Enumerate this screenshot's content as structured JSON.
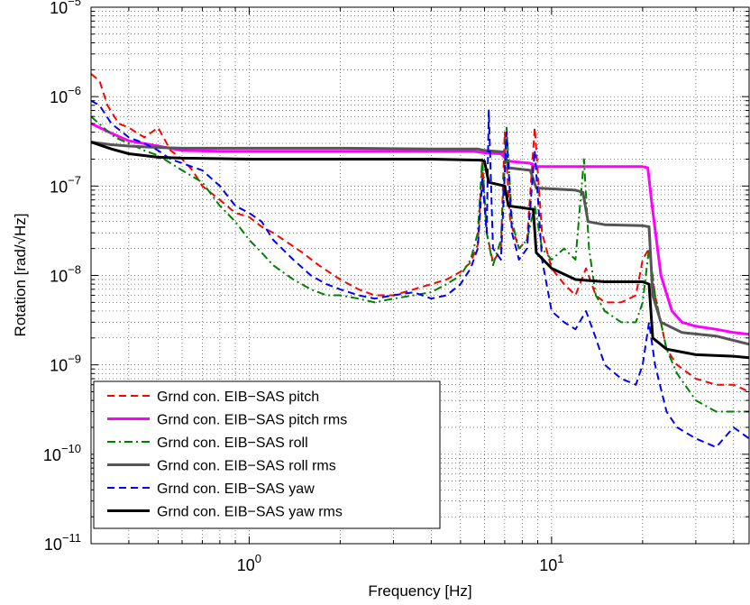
{
  "chart_data": {
    "type": "line",
    "xlabel": "Frequency [Hz]",
    "ylabel": "Rotation [rad/√Hz]",
    "xscale": "log",
    "yscale": "log",
    "xlim": [
      0.3,
      45
    ],
    "ylim": [
      1e-11,
      1e-05
    ],
    "grid": true,
    "legend_position": "bottom-left",
    "x_ticks": [
      {
        "value": 1,
        "base": "10",
        "exp": "0"
      },
      {
        "value": 10,
        "base": "10",
        "exp": "1"
      }
    ],
    "y_ticks": [
      {
        "value": 1e-11,
        "base": "10",
        "exp": "−11"
      },
      {
        "value": 1e-10,
        "base": "10",
        "exp": "−10"
      },
      {
        "value": 1e-09,
        "base": "10",
        "exp": "−9"
      },
      {
        "value": 1e-08,
        "base": "10",
        "exp": "−8"
      },
      {
        "value": 1e-07,
        "base": "10",
        "exp": "−7"
      },
      {
        "value": 1e-06,
        "base": "10",
        "exp": "−6"
      },
      {
        "value": 1e-05,
        "base": "10",
        "exp": "−5"
      }
    ],
    "series": [
      {
        "name": "Grnd con. EIB−SAS pitch",
        "color": "#ff0000",
        "style": "dashed",
        "width": 2,
        "points": [
          [
            0.3,
            1.8e-06
          ],
          [
            0.32,
            1.5e-06
          ],
          [
            0.34,
            8e-07
          ],
          [
            0.37,
            5e-07
          ],
          [
            0.4,
            4.5e-07
          ],
          [
            0.45,
            3.5e-07
          ],
          [
            0.5,
            4.5e-07
          ],
          [
            0.55,
            2.5e-07
          ],
          [
            0.6,
            2e-07
          ],
          [
            0.65,
            1.5e-07
          ],
          [
            0.7,
            1e-07
          ],
          [
            0.8,
            7e-08
          ],
          [
            0.9,
            5e-08
          ],
          [
            1.0,
            4.5e-08
          ],
          [
            1.1,
            3.5e-08
          ],
          [
            1.2,
            3e-08
          ],
          [
            1.3,
            2.5e-08
          ],
          [
            1.5,
            1.8e-08
          ],
          [
            1.7,
            1.3e-08
          ],
          [
            2.0,
            9e-09
          ],
          [
            2.3,
            7e-09
          ],
          [
            2.6,
            6e-09
          ],
          [
            3.0,
            6e-09
          ],
          [
            3.5,
            7e-09
          ],
          [
            4.0,
            8e-09
          ],
          [
            4.5,
            9e-09
          ],
          [
            5.0,
            1.1e-08
          ],
          [
            5.4,
            1.4e-08
          ],
          [
            5.7,
            2.2e-08
          ],
          [
            5.9,
            1.8e-07
          ],
          [
            6.1,
            3e-08
          ],
          [
            6.4,
            1.4e-08
          ],
          [
            6.8,
            2e-08
          ],
          [
            7.0,
            4e-07
          ],
          [
            7.3,
            4e-08
          ],
          [
            7.8,
            2e-08
          ],
          [
            8.3,
            2.5e-08
          ],
          [
            8.8,
            4.5e-07
          ],
          [
            9.3,
            3e-08
          ],
          [
            10,
            1.2e-08
          ],
          [
            11,
            8e-09
          ],
          [
            12,
            6e-09
          ],
          [
            13,
            1.2e-08
          ],
          [
            14,
            6e-09
          ],
          [
            15,
            5e-09
          ],
          [
            17,
            5e-09
          ],
          [
            19,
            6e-09
          ],
          [
            20,
            1.5e-08
          ],
          [
            21,
            2e-08
          ],
          [
            22,
            6e-09
          ],
          [
            24,
            1.5e-09
          ],
          [
            26,
            1e-09
          ],
          [
            30,
            7e-10
          ],
          [
            35,
            6e-10
          ],
          [
            40,
            6e-10
          ],
          [
            45,
            5e-10
          ]
        ]
      },
      {
        "name": "Grnd con. EIB−SAS pitch rms",
        "color": "#ff00ff",
        "style": "solid",
        "width": 3,
        "points": [
          [
            0.3,
            5e-07
          ],
          [
            0.35,
            3.9e-07
          ],
          [
            0.4,
            3.2e-07
          ],
          [
            0.5,
            2.8e-07
          ],
          [
            0.6,
            2.5e-07
          ],
          [
            0.8,
            2.45e-07
          ],
          [
            1.0,
            2.45e-07
          ],
          [
            2.0,
            2.45e-07
          ],
          [
            4.0,
            2.45e-07
          ],
          [
            5.5,
            2.45e-07
          ],
          [
            6.0,
            2.35e-07
          ],
          [
            6.8,
            2.3e-07
          ],
          [
            7.2,
            1.9e-07
          ],
          [
            8.5,
            1.8e-07
          ],
          [
            9.0,
            1.65e-07
          ],
          [
            12,
            1.65e-07
          ],
          [
            15,
            1.65e-07
          ],
          [
            20,
            1.65e-07
          ],
          [
            20.8,
            1.6e-07
          ],
          [
            21.5,
            6e-08
          ],
          [
            23,
            1e-08
          ],
          [
            25,
            4e-09
          ],
          [
            27,
            3e-09
          ],
          [
            30,
            2.7e-09
          ],
          [
            35,
            2.5e-09
          ],
          [
            40,
            2.3e-09
          ],
          [
            45,
            2.2e-09
          ]
        ]
      },
      {
        "name": "Grnd con. EIB−SAS roll",
        "color": "#008000",
        "style": "dashdot",
        "width": 2,
        "points": [
          [
            0.3,
            6e-07
          ],
          [
            0.33,
            4.5e-07
          ],
          [
            0.36,
            3.5e-07
          ],
          [
            0.4,
            3e-07
          ],
          [
            0.45,
            2.5e-07
          ],
          [
            0.5,
            2.2e-07
          ],
          [
            0.55,
            1.8e-07
          ],
          [
            0.6,
            1.5e-07
          ],
          [
            0.7,
            1.1e-07
          ],
          [
            0.8,
            6e-08
          ],
          [
            0.9,
            4e-08
          ],
          [
            1.0,
            2.5e-08
          ],
          [
            1.1,
            1.8e-08
          ],
          [
            1.2,
            1.3e-08
          ],
          [
            1.4,
            9e-09
          ],
          [
            1.6,
            7e-09
          ],
          [
            1.8,
            6e-09
          ],
          [
            2.0,
            6e-09
          ],
          [
            2.3,
            5.5e-09
          ],
          [
            2.6,
            5e-09
          ],
          [
            3.0,
            5.5e-09
          ],
          [
            3.5,
            6e-09
          ],
          [
            4.0,
            6.5e-09
          ],
          [
            4.5,
            8e-09
          ],
          [
            5.0,
            1e-08
          ],
          [
            5.4,
            1.5e-08
          ],
          [
            5.7,
            3e-08
          ],
          [
            5.9,
            2e-07
          ],
          [
            6.1,
            3e-08
          ],
          [
            6.4,
            1.3e-08
          ],
          [
            6.8,
            2.5e-08
          ],
          [
            7.1,
            4.5e-07
          ],
          [
            7.4,
            4e-08
          ],
          [
            7.8,
            2e-08
          ],
          [
            8.3,
            2.5e-08
          ],
          [
            8.8,
            6e-08
          ],
          [
            9.3,
            2e-08
          ],
          [
            10,
            1.5e-08
          ],
          [
            11,
            2e-08
          ],
          [
            12,
            1.5e-08
          ],
          [
            12.8,
            2e-07
          ],
          [
            13.3,
            2e-08
          ],
          [
            14,
            6e-09
          ],
          [
            15,
            4e-09
          ],
          [
            17,
            3e-09
          ],
          [
            19,
            3e-09
          ],
          [
            20,
            5e-09
          ],
          [
            21,
            2e-08
          ],
          [
            22,
            6e-09
          ],
          [
            24,
            1.5e-09
          ],
          [
            26,
            8e-10
          ],
          [
            30,
            4e-10
          ],
          [
            35,
            3e-10
          ],
          [
            40,
            3e-10
          ],
          [
            45,
            3e-10
          ]
        ]
      },
      {
        "name": "Grnd con. EIB−SAS roll rms",
        "color": "#555555",
        "style": "solid",
        "width": 3,
        "points": [
          [
            0.3,
            3.1e-07
          ],
          [
            0.35,
            2.9e-07
          ],
          [
            0.4,
            2.8e-07
          ],
          [
            0.5,
            2.7e-07
          ],
          [
            0.6,
            2.65e-07
          ],
          [
            1.0,
            2.65e-07
          ],
          [
            2.0,
            2.65e-07
          ],
          [
            4.0,
            2.6e-07
          ],
          [
            5.7,
            2.6e-07
          ],
          [
            6.0,
            2.5e-07
          ],
          [
            7.0,
            2.4e-07
          ],
          [
            7.2,
            1.6e-07
          ],
          [
            8.5,
            1.5e-07
          ],
          [
            8.9,
            9.5e-08
          ],
          [
            12,
            9e-08
          ],
          [
            12.7,
            8.5e-08
          ],
          [
            13.2,
            4e-08
          ],
          [
            15,
            3.7e-08
          ],
          [
            20,
            3.6e-08
          ],
          [
            21,
            3.5e-08
          ],
          [
            21.6,
            6e-09
          ],
          [
            23,
            3e-09
          ],
          [
            27,
            2.3e-09
          ],
          [
            35,
            2.1e-09
          ],
          [
            45,
            1.7e-09
          ]
        ]
      },
      {
        "name": "Grnd con. EIB−SAS yaw",
        "color": "#0000ff",
        "style": "dashed",
        "width": 2,
        "points": [
          [
            0.3,
            9e-07
          ],
          [
            0.32,
            8e-07
          ],
          [
            0.35,
            5e-07
          ],
          [
            0.4,
            3.5e-07
          ],
          [
            0.45,
            3e-07
          ],
          [
            0.5,
            2.5e-07
          ],
          [
            0.55,
            2e-07
          ],
          [
            0.6,
            1.8e-07
          ],
          [
            0.7,
            1.5e-07
          ],
          [
            0.8,
            1e-07
          ],
          [
            0.9,
            6e-08
          ],
          [
            1.0,
            5e-08
          ],
          [
            1.1,
            4e-08
          ],
          [
            1.2,
            2.5e-08
          ],
          [
            1.4,
            1.5e-08
          ],
          [
            1.6,
            1e-08
          ],
          [
            1.8,
            8e-09
          ],
          [
            2.0,
            7e-09
          ],
          [
            2.3,
            6e-09
          ],
          [
            2.6,
            5.5e-09
          ],
          [
            3.0,
            6e-09
          ],
          [
            3.5,
            6.5e-09
          ],
          [
            4.0,
            5.5e-09
          ],
          [
            4.5,
            6e-09
          ],
          [
            5.0,
            8e-09
          ],
          [
            5.4,
            1.2e-08
          ],
          [
            5.7,
            2e-08
          ],
          [
            5.9,
            1.2e-07
          ],
          [
            6.1,
            3e-08
          ],
          [
            6.2,
            7e-07
          ],
          [
            6.4,
            2e-08
          ],
          [
            6.8,
            1.5e-08
          ],
          [
            7.1,
            4e-07
          ],
          [
            7.4,
            3e-08
          ],
          [
            7.8,
            1.5e-08
          ],
          [
            8.3,
            2e-08
          ],
          [
            8.8,
            2.5e-07
          ],
          [
            9.3,
            1.5e-08
          ],
          [
            10,
            4e-09
          ],
          [
            11,
            3e-09
          ],
          [
            12,
            2.5e-09
          ],
          [
            13,
            4e-09
          ],
          [
            14,
            2e-09
          ],
          [
            15,
            1e-09
          ],
          [
            17,
            7e-10
          ],
          [
            19,
            6e-10
          ],
          [
            20,
            1e-09
          ],
          [
            21,
            3e-09
          ],
          [
            22,
            1e-09
          ],
          [
            24,
            3e-10
          ],
          [
            26,
            2e-10
          ],
          [
            30,
            1.5e-10
          ],
          [
            35,
            1.2e-10
          ],
          [
            40,
            2e-10
          ],
          [
            45,
            1.5e-10
          ]
        ]
      },
      {
        "name": "Grnd con. EIB−SAS yaw rms",
        "color": "#000000",
        "style": "solid",
        "width": 3,
        "points": [
          [
            0.3,
            3.1e-07
          ],
          [
            0.35,
            2.6e-07
          ],
          [
            0.4,
            2.3e-07
          ],
          [
            0.5,
            2.1e-07
          ],
          [
            0.6,
            2.05e-07
          ],
          [
            1.0,
            2e-07
          ],
          [
            2.0,
            2e-07
          ],
          [
            4.0,
            2e-07
          ],
          [
            5.8,
            1.95e-07
          ],
          [
            6.0,
            1.9e-07
          ],
          [
            6.2,
            1.1e-07
          ],
          [
            7.0,
            1e-07
          ],
          [
            7.2,
            6e-08
          ],
          [
            8.7,
            5.5e-08
          ],
          [
            8.9,
            1.8e-08
          ],
          [
            10,
            1.2e-08
          ],
          [
            12,
            9e-09
          ],
          [
            15,
            8.5e-09
          ],
          [
            20,
            8.5e-09
          ],
          [
            21,
            8e-09
          ],
          [
            21.6,
            2e-09
          ],
          [
            24,
            1.5e-09
          ],
          [
            30,
            1.3e-09
          ],
          [
            40,
            1.25e-09
          ],
          [
            45,
            1.2e-09
          ]
        ]
      }
    ]
  }
}
